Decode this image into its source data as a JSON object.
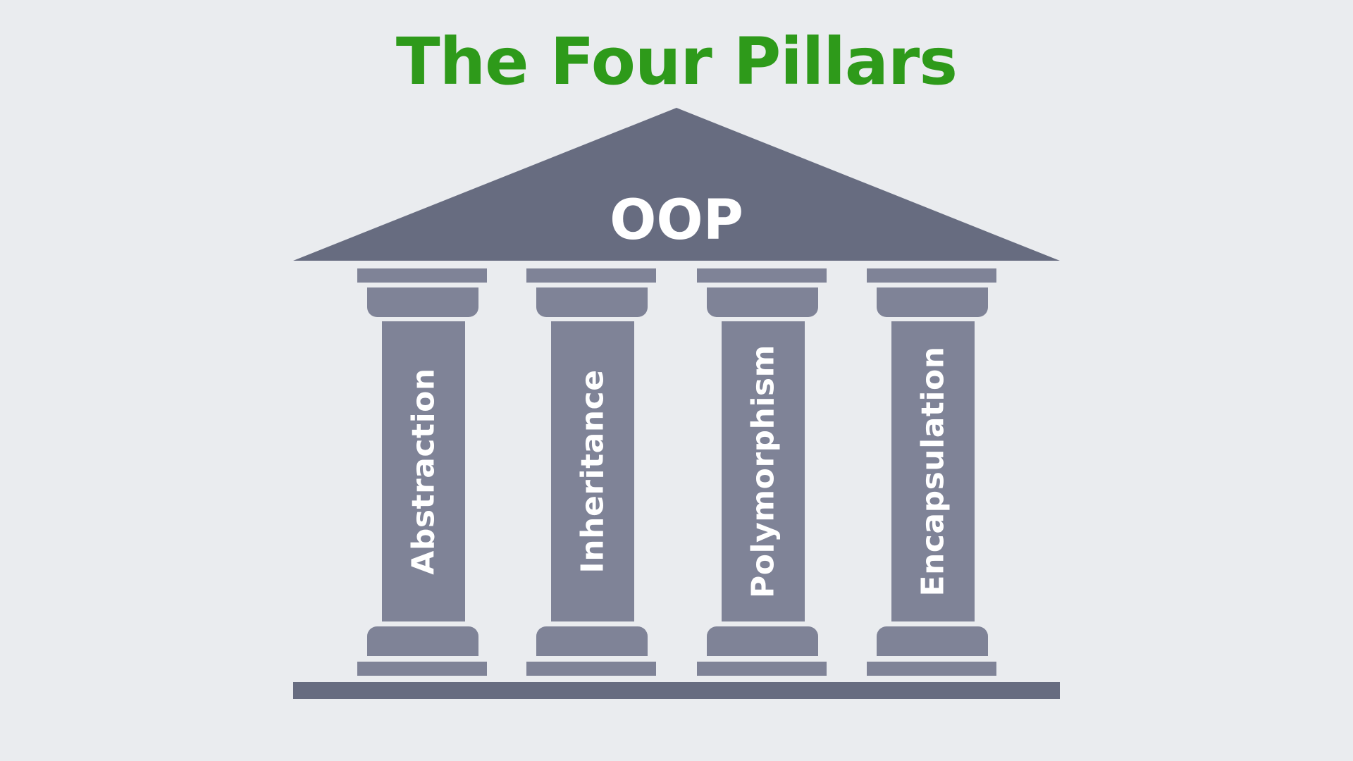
{
  "title": "The Four Pillars",
  "roof_label": "OOP",
  "pillars": [
    {
      "label": "Abstraction"
    },
    {
      "label": "Inheritance"
    },
    {
      "label": "Polymorphism"
    },
    {
      "label": "Encapsulation"
    }
  ],
  "colors": {
    "background": "#eaecef",
    "title": "#2e9a1a",
    "roof": "#676c80",
    "pillar": "#7f8397",
    "base": "#676c80",
    "text": "#ffffff"
  }
}
